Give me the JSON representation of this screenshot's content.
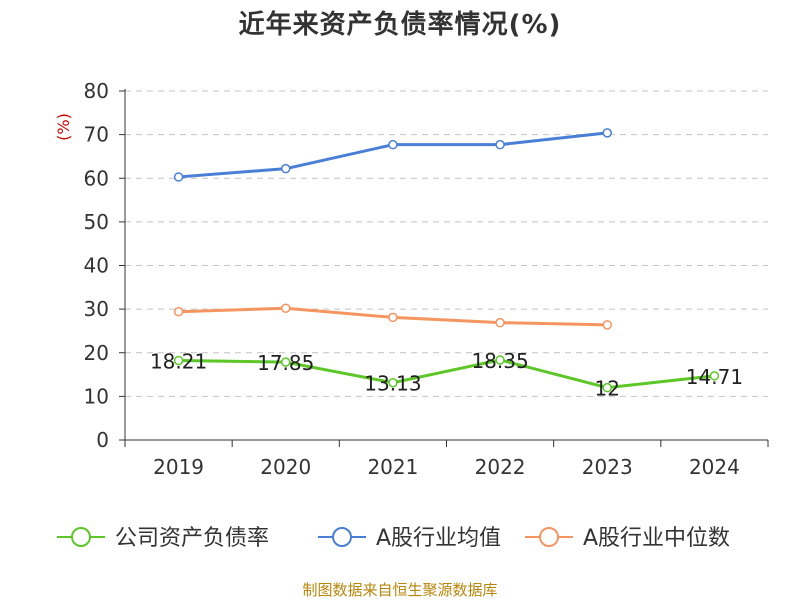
{
  "chart_data": {
    "type": "line",
    "title": "近年来资产负债率情况(%)",
    "ylabel": "(%)",
    "categories": [
      "2019",
      "2020",
      "2021",
      "2022",
      "2023",
      "2024"
    ],
    "ylim": [
      0,
      80
    ],
    "yticks": [
      0,
      10,
      20,
      30,
      40,
      50,
      60,
      70,
      80
    ],
    "grid": true,
    "legend_position": "bottom",
    "series": [
      {
        "name": "公司资产负债率",
        "color": "#5cc726",
        "values": [
          18.21,
          17.85,
          13.13,
          18.35,
          12,
          14.71
        ],
        "labels": [
          "18.21",
          "17.85",
          "13.13",
          "18.35",
          "12",
          "14.71"
        ]
      },
      {
        "name": "A股行业均值",
        "color": "#4a7fd7",
        "values": [
          60.3,
          62.2,
          67.7,
          67.7,
          70.4,
          null
        ]
      },
      {
        "name": "A股行业中位数",
        "color": "#f59560",
        "values": [
          29.4,
          30.2,
          28.1,
          26.9,
          26.4,
          null
        ]
      }
    ]
  },
  "source": "制图数据来自恒生聚源数据库"
}
